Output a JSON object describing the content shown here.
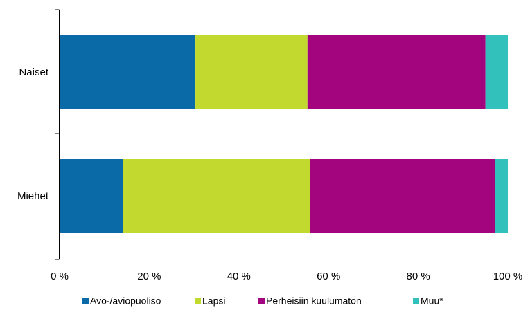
{
  "chart_data": {
    "type": "bar",
    "orientation": "horizontal",
    "stacked": true,
    "title": "",
    "xlabel": "",
    "ylabel": "",
    "xlim": [
      0,
      100
    ],
    "x_ticks": [
      "0 %",
      "20 %",
      "40 %",
      "60 %",
      "80 %",
      "100 %"
    ],
    "categories": [
      "Naiset",
      "Miehet"
    ],
    "series": [
      {
        "name": "Avo-/aviopuoliso",
        "color": "#0a6aa8",
        "values": [
          30.3,
          14.2
        ]
      },
      {
        "name": "Lapsi",
        "color": "#c2d930",
        "values": [
          25.0,
          41.6
        ]
      },
      {
        "name": "Perheisiin kuulumaton",
        "color": "#a3057f",
        "values": [
          39.7,
          41.3
        ]
      },
      {
        "name": "Muu*",
        "color": "#33c1bc",
        "values": [
          5.0,
          2.9
        ]
      }
    ],
    "legend_position": "bottom",
    "grid": false
  }
}
